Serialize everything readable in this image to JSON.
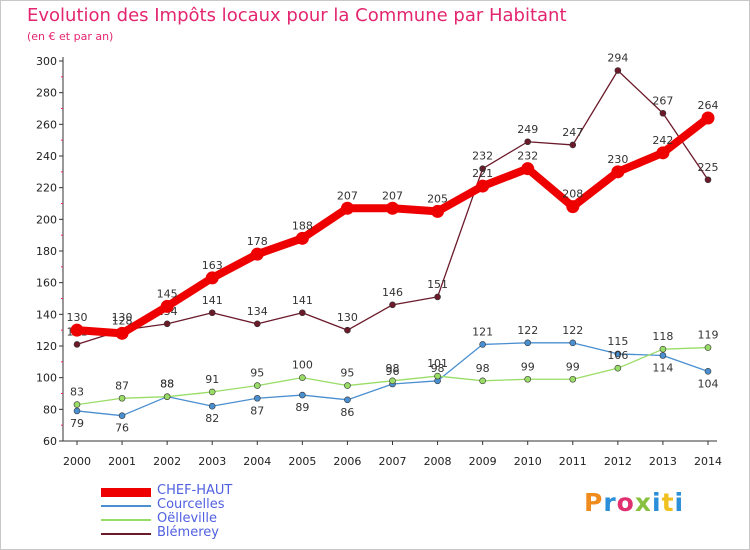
{
  "header": {
    "title": "Evolution des Impôts locaux pour la Commune par Habitant",
    "subtitle": "(en € et par an)"
  },
  "logo": {
    "text": "Proxiti",
    "colors": [
      "#f08c1e",
      "#2a8fd8",
      "#e03070",
      "#88c040",
      "#2a8fd8",
      "#f0c020",
      "#2a8fd8"
    ]
  },
  "chart_data": {
    "type": "line",
    "title": "Evolution des Impôts locaux pour la Commune par Habitant",
    "subtitle": "(en € et par an)",
    "x": [
      "2000",
      "2001",
      "2002",
      "2003",
      "2004",
      "2005",
      "2006",
      "2007",
      "2008",
      "2009",
      "2010",
      "2011",
      "2012",
      "2013",
      "2014"
    ],
    "ylim": [
      60,
      300
    ],
    "yticks": [
      60,
      80,
      100,
      120,
      140,
      160,
      180,
      200,
      220,
      240,
      260,
      280,
      300
    ],
    "grid": false,
    "legend_position": "bottom-left",
    "series": [
      {
        "name": "CHEF-HAUT",
        "color": "#ee0000",
        "values": [
          130,
          128,
          145,
          163,
          178,
          188,
          207,
          207,
          205,
          221,
          232,
          208,
          230,
          242,
          264
        ]
      },
      {
        "name": "Courcelles",
        "color": "#4a8fd0",
        "values": [
          79,
          76,
          88,
          82,
          87,
          89,
          86,
          96,
          98,
          121,
          122,
          122,
          115,
          114,
          104
        ]
      },
      {
        "name": "Oëlleville",
        "color": "#99dd66",
        "values": [
          83,
          87,
          88,
          91,
          95,
          100,
          95,
          98,
          101,
          98,
          99,
          99,
          106,
          118,
          119
        ]
      },
      {
        "name": "Blémerey",
        "color": "#6b1a2a",
        "values": [
          121,
          130,
          134,
          141,
          134,
          141,
          130,
          146,
          151,
          232,
          249,
          247,
          294,
          267,
          225
        ]
      }
    ]
  }
}
